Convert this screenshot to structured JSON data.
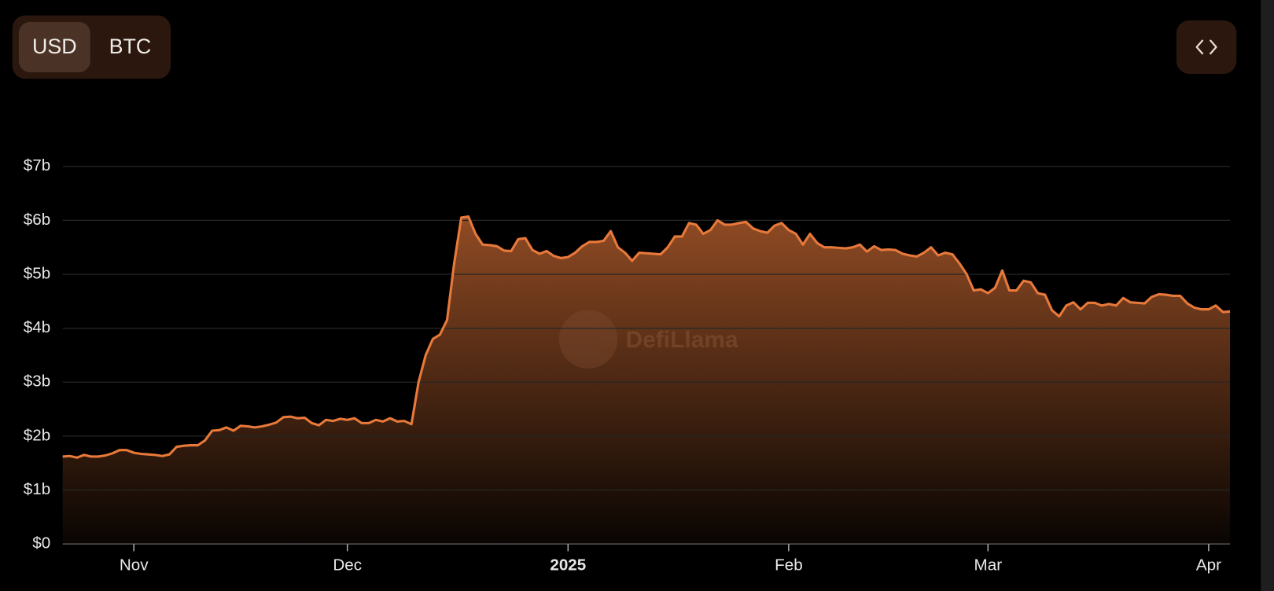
{
  "toggle": {
    "options": [
      "USD",
      "BTC"
    ],
    "selected": "USD"
  },
  "watermark": "DefiLlama",
  "chart_data": {
    "type": "area",
    "categories": [
      null,
      null,
      null,
      null,
      null,
      null,
      null,
      null,
      null,
      null,
      "Nov",
      null,
      null,
      null,
      null,
      null,
      null,
      null,
      null,
      null,
      null,
      null,
      null,
      null,
      null,
      null,
      null,
      null,
      null,
      null,
      null,
      null,
      null,
      null,
      null,
      null,
      null,
      null,
      null,
      null,
      "Dec",
      null,
      null,
      null,
      null,
      null,
      null,
      null,
      null,
      null,
      null,
      null,
      null,
      null,
      null,
      null,
      null,
      null,
      null,
      null,
      null,
      null,
      null,
      null,
      null,
      null,
      null,
      null,
      null,
      null,
      null,
      "2025",
      null,
      null,
      null,
      null,
      null,
      null,
      null,
      null,
      null,
      null,
      null,
      null,
      null,
      null,
      null,
      null,
      null,
      null,
      null,
      null,
      null,
      null,
      null,
      null,
      null,
      null,
      null,
      null,
      null,
      null,
      "Feb",
      null,
      null,
      null,
      null,
      null,
      null,
      null,
      null,
      null,
      null,
      null,
      null,
      null,
      null,
      null,
      null,
      null,
      null,
      null,
      null,
      null,
      null,
      null,
      null,
      null,
      null,
      null,
      "Mar",
      null,
      null,
      null,
      null,
      null,
      null,
      null,
      null,
      null,
      null,
      null,
      null,
      null,
      null,
      null,
      null,
      null,
      null,
      null,
      null,
      null,
      null,
      null,
      null,
      null,
      null,
      null,
      null,
      null,
      null,
      "Apr",
      null,
      null,
      null
    ],
    "series": [
      {
        "color": "#e8793a",
        "values": [
          1.62,
          1.63,
          1.6,
          1.65,
          1.62,
          1.62,
          1.64,
          1.68,
          1.74,
          1.74,
          1.69,
          1.67,
          1.66,
          1.65,
          1.63,
          1.66,
          1.8,
          1.82,
          1.83,
          1.83,
          1.92,
          2.1,
          2.11,
          2.16,
          2.1,
          2.19,
          2.18,
          2.16,
          2.18,
          2.21,
          2.25,
          2.35,
          2.36,
          2.33,
          2.34,
          2.24,
          2.2,
          2.3,
          2.28,
          2.32,
          2.3,
          2.33,
          2.24,
          2.24,
          2.3,
          2.27,
          2.33,
          2.27,
          2.28,
          2.22,
          3.0,
          3.5,
          3.8,
          3.88,
          4.15,
          5.2,
          6.05,
          6.07,
          5.75,
          5.55,
          5.54,
          5.52,
          5.44,
          5.43,
          5.65,
          5.67,
          5.45,
          5.38,
          5.43,
          5.34,
          5.3,
          5.32,
          5.4,
          5.52,
          5.6,
          5.6,
          5.62,
          5.8,
          5.5,
          5.4,
          5.25,
          5.4,
          5.39,
          5.38,
          5.37,
          5.5,
          5.7,
          5.7,
          5.95,
          5.92,
          5.75,
          5.82,
          6.0,
          5.92,
          5.92,
          5.95,
          5.97,
          5.85,
          5.8,
          5.77,
          5.9,
          5.95,
          5.82,
          5.75,
          5.55,
          5.75,
          5.58,
          5.5,
          5.5,
          5.49,
          5.48,
          5.5,
          5.55,
          5.42,
          5.52,
          5.45,
          5.46,
          5.45,
          5.38,
          5.35,
          5.33,
          5.4,
          5.5,
          5.35,
          5.4,
          5.37,
          5.2,
          5.0,
          4.7,
          4.72,
          4.65,
          4.75,
          5.07,
          4.7,
          4.7,
          4.88,
          4.85,
          4.65,
          4.62,
          4.33,
          4.22,
          4.42,
          4.48,
          4.35,
          4.47,
          4.47,
          4.42,
          4.45,
          4.42,
          4.56,
          4.48,
          4.47,
          4.46,
          4.58,
          4.63,
          4.62,
          4.6,
          4.6,
          4.46,
          4.38,
          4.35,
          4.35,
          4.42,
          4.3,
          4.31
        ]
      }
    ],
    "ylim": [
      0,
      7
    ],
    "yticks": [
      {
        "value": 0,
        "label": "$0"
      },
      {
        "value": 1,
        "label": "$1b"
      },
      {
        "value": 2,
        "label": "$2b"
      },
      {
        "value": 3,
        "label": "$3b"
      },
      {
        "value": 4,
        "label": "$4b"
      },
      {
        "value": 5,
        "label": "$5b"
      },
      {
        "value": 6,
        "label": "$6b"
      },
      {
        "value": 7,
        "label": "$7b"
      }
    ],
    "grid": true
  }
}
